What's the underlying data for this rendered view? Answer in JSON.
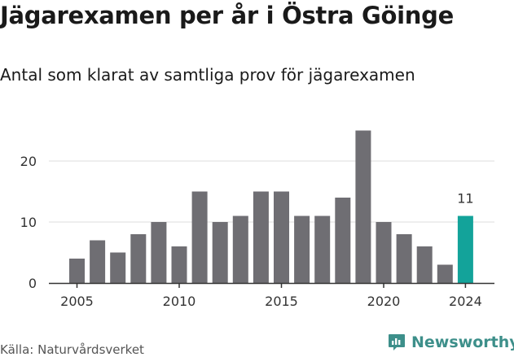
{
  "title": "Jägarexamen per år i Östra Göinge",
  "subtitle": "Antal som klarat av samtliga prov för jägarexamen",
  "source": "Källa: Naturvårdsverket",
  "brand": {
    "name": "Newsworthy",
    "icon": "newsworthy-logo-icon"
  },
  "colors": {
    "bar": "#6f6e73",
    "highlight": "#13a39a",
    "grid": "#dddddd",
    "axis": "#333333",
    "brand": "#3d8f8a"
  },
  "chart_data": {
    "type": "bar",
    "x": [
      2005,
      2006,
      2007,
      2008,
      2009,
      2010,
      2011,
      2012,
      2013,
      2014,
      2015,
      2016,
      2017,
      2018,
      2019,
      2020,
      2021,
      2022,
      2023,
      2024
    ],
    "values": [
      4,
      7,
      5,
      8,
      10,
      6,
      15,
      10,
      11,
      15,
      15,
      11,
      11,
      14,
      25,
      10,
      8,
      6,
      3,
      11
    ],
    "x_ticks": [
      2005,
      2010,
      2015,
      2020,
      2024
    ],
    "y_ticks": [
      0,
      10,
      20
    ],
    "ylim": [
      0,
      26
    ],
    "grid": true,
    "highlight": {
      "x": 2024,
      "label": "11"
    }
  }
}
